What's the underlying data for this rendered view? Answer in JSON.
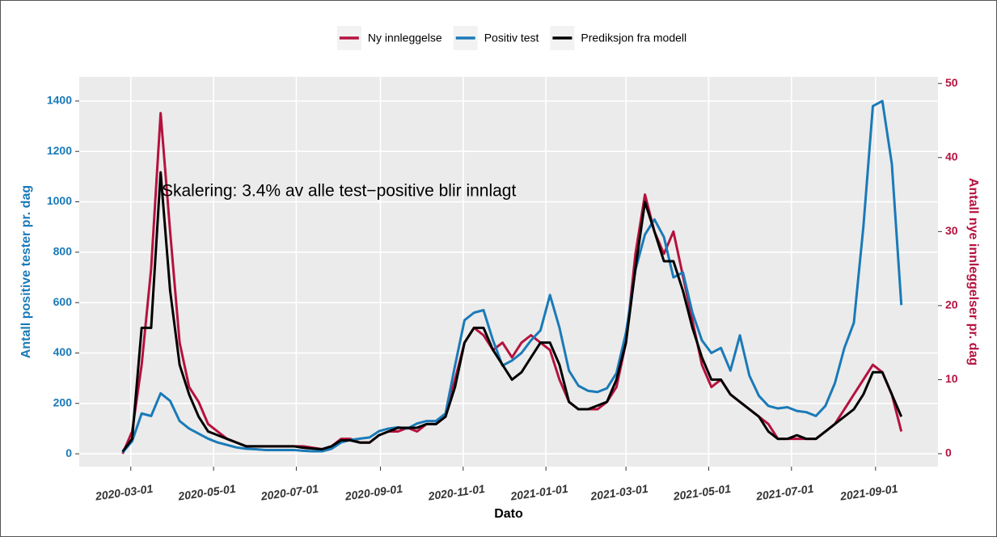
{
  "chart_data": {
    "type": "line",
    "annotation": "Skalering: 3.4% av alle test−positive blir innlagt",
    "xlabel": "Dato",
    "ylabel": "Antall positive tester pr. dag",
    "y2label": "Antall nye innleggelser pr. dag",
    "ylim": [
      -51,
      1496
    ],
    "yticks": [
      0,
      200,
      400,
      600,
      800,
      1000,
      1200,
      1400
    ],
    "y2lim": [
      -1.75,
      50.9
    ],
    "y2ticks": [
      0,
      10,
      20,
      30,
      40,
      50
    ],
    "xlim": [
      "2020-01-23",
      "2021-10-17"
    ],
    "xticks": [
      "2020-03-01",
      "2020-05-01",
      "2020-07-01",
      "2020-09-01",
      "2020-11-01",
      "2021-01-01",
      "2021-03-01",
      "2021-05-01",
      "2021-07-01",
      "2021-09-01"
    ],
    "grid": true,
    "legend": "top",
    "x": [
      "2020-02-24",
      "2020-03-02",
      "2020-03-09",
      "2020-03-16",
      "2020-03-23",
      "2020-03-30",
      "2020-04-06",
      "2020-04-13",
      "2020-04-20",
      "2020-04-27",
      "2020-05-04",
      "2020-05-11",
      "2020-05-18",
      "2020-05-25",
      "2020-06-01",
      "2020-06-08",
      "2020-06-15",
      "2020-06-22",
      "2020-06-29",
      "2020-07-06",
      "2020-07-13",
      "2020-07-20",
      "2020-07-27",
      "2020-08-03",
      "2020-08-10",
      "2020-08-17",
      "2020-08-24",
      "2020-08-31",
      "2020-09-07",
      "2020-09-14",
      "2020-09-21",
      "2020-09-28",
      "2020-10-05",
      "2020-10-12",
      "2020-10-19",
      "2020-10-26",
      "2020-11-02",
      "2020-11-09",
      "2020-11-16",
      "2020-11-23",
      "2020-11-30",
      "2020-12-07",
      "2020-12-14",
      "2020-12-21",
      "2020-12-28",
      "2021-01-04",
      "2021-01-11",
      "2021-01-18",
      "2021-01-25",
      "2021-02-01",
      "2021-02-08",
      "2021-02-15",
      "2021-02-22",
      "2021-03-01",
      "2021-03-08",
      "2021-03-15",
      "2021-03-22",
      "2021-03-29",
      "2021-04-05",
      "2021-04-12",
      "2021-04-19",
      "2021-04-26",
      "2021-05-03",
      "2021-05-10",
      "2021-05-17",
      "2021-05-24",
      "2021-05-31",
      "2021-06-07",
      "2021-06-14",
      "2021-06-21",
      "2021-06-28",
      "2021-07-05",
      "2021-07-12",
      "2021-07-19",
      "2021-07-26",
      "2021-08-02",
      "2021-08-09",
      "2021-08-16",
      "2021-08-23",
      "2021-08-30",
      "2021-09-06",
      "2021-09-13",
      "2021-09-20"
    ],
    "series": [
      {
        "name": "Ny innleggelse",
        "color": "#b5123e",
        "axis": "y2",
        "values": [
          0,
          3,
          12,
          25,
          46,
          30,
          15,
          9,
          7,
          4,
          3,
          2,
          1.5,
          1,
          1,
          1,
          1,
          1,
          1,
          1,
          0.8,
          0.6,
          1,
          2,
          2,
          1.5,
          1.5,
          2.5,
          3,
          3,
          3.5,
          3,
          4,
          4,
          5,
          10,
          15,
          17,
          16,
          14,
          15,
          13,
          15,
          16,
          15,
          14,
          10,
          7,
          6,
          6,
          6,
          7,
          9,
          15,
          27,
          35,
          30,
          27,
          30,
          24,
          18,
          12,
          9,
          10,
          8,
          7,
          6,
          5,
          4,
          2,
          2,
          2,
          2,
          2,
          3,
          4,
          6,
          8,
          10,
          12,
          11,
          8,
          3
        ]
      },
      {
        "name": "Positiv test",
        "color": "#1a7ab8",
        "values": [
          5,
          50,
          160,
          150,
          240,
          210,
          130,
          100,
          80,
          60,
          45,
          35,
          25,
          20,
          18,
          15,
          15,
          15,
          15,
          12,
          10,
          10,
          20,
          45,
          55,
          60,
          65,
          90,
          100,
          105,
          100,
          120,
          130,
          130,
          160,
          350,
          530,
          560,
          570,
          450,
          350,
          370,
          400,
          450,
          490,
          630,
          500,
          330,
          270,
          250,
          245,
          260,
          320,
          480,
          730,
          870,
          930,
          860,
          700,
          720,
          560,
          450,
          400,
          420,
          330,
          470,
          310,
          230,
          190,
          180,
          185,
          170,
          165,
          150,
          190,
          280,
          420,
          520,
          900,
          1380,
          1400,
          1150,
          590
        ]
      },
      {
        "name": "Prediksjon fra modell",
        "color": "#000000",
        "axis": "y2",
        "values": [
          0.3,
          2,
          17,
          17,
          38,
          22,
          12,
          8,
          5,
          3,
          2.5,
          2,
          1.5,
          1,
          1,
          1,
          1,
          1,
          1,
          0.8,
          0.7,
          0.6,
          1,
          1.8,
          1.8,
          1.5,
          1.5,
          2.5,
          3,
          3.5,
          3.5,
          3.5,
          4,
          4,
          5,
          9,
          15,
          17,
          17,
          14,
          12,
          10,
          11,
          13,
          15,
          15,
          12,
          7,
          6,
          6,
          6.5,
          7,
          10,
          15,
          25,
          34,
          30,
          26,
          26,
          22,
          17,
          13,
          10,
          10,
          8,
          7,
          6,
          5,
          3,
          2,
          2,
          2.5,
          2,
          2,
          3,
          4,
          5,
          6,
          8,
          11,
          11,
          8,
          5
        ]
      }
    ]
  }
}
